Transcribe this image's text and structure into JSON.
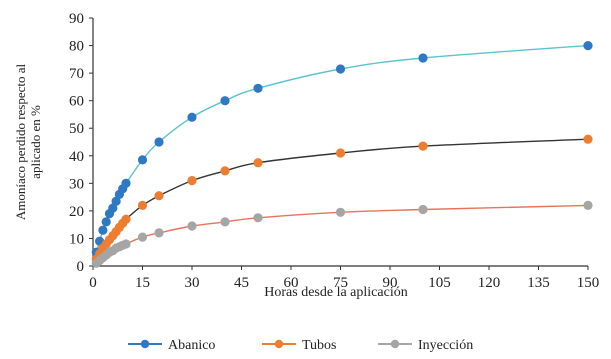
{
  "chart_data": {
    "type": "line",
    "x": [
      0,
      1,
      2,
      3,
      4,
      5,
      6,
      7,
      8,
      9,
      10,
      15,
      20,
      30,
      40,
      50,
      75,
      100,
      150
    ],
    "series": [
      {
        "name": "Abanico",
        "color": "#2f78c4",
        "values": [
          0,
          5,
          9,
          13,
          16,
          19,
          21,
          23.5,
          26,
          28,
          30,
          38.5,
          45,
          54,
          60,
          64.5,
          71.5,
          75.5,
          80
        ]
      },
      {
        "name": "Tubos",
        "color": "#ed7d31",
        "values": [
          0,
          2.5,
          4.5,
          6.5,
          8,
          9.5,
          11,
          12.5,
          14,
          15.5,
          17,
          22,
          25.5,
          31,
          34.5,
          37.5,
          41,
          43.5,
          46
        ]
      },
      {
        "name": "Inyección",
        "color": "#a5a5a5",
        "values": [
          0,
          1,
          2,
          3,
          4,
          5,
          5.5,
          6.5,
          7,
          7.5,
          8,
          10.5,
          12,
          14.5,
          16,
          17.5,
          19.5,
          20.5,
          22
        ]
      }
    ],
    "xlabel": "Horas desde la aplicación",
    "ylabel_lines": [
      "Amoníaco perdido respecto al",
      "aplicado en %"
    ],
    "xlim": [
      0,
      150
    ],
    "ylim": [
      0,
      90
    ],
    "xticks": [
      0,
      15,
      30,
      45,
      60,
      75,
      90,
      105,
      120,
      135,
      150
    ],
    "yticks": [
      0,
      10,
      20,
      30,
      40,
      50,
      60,
      70,
      80,
      90
    ],
    "grid": false,
    "legend_position": "bottom"
  }
}
